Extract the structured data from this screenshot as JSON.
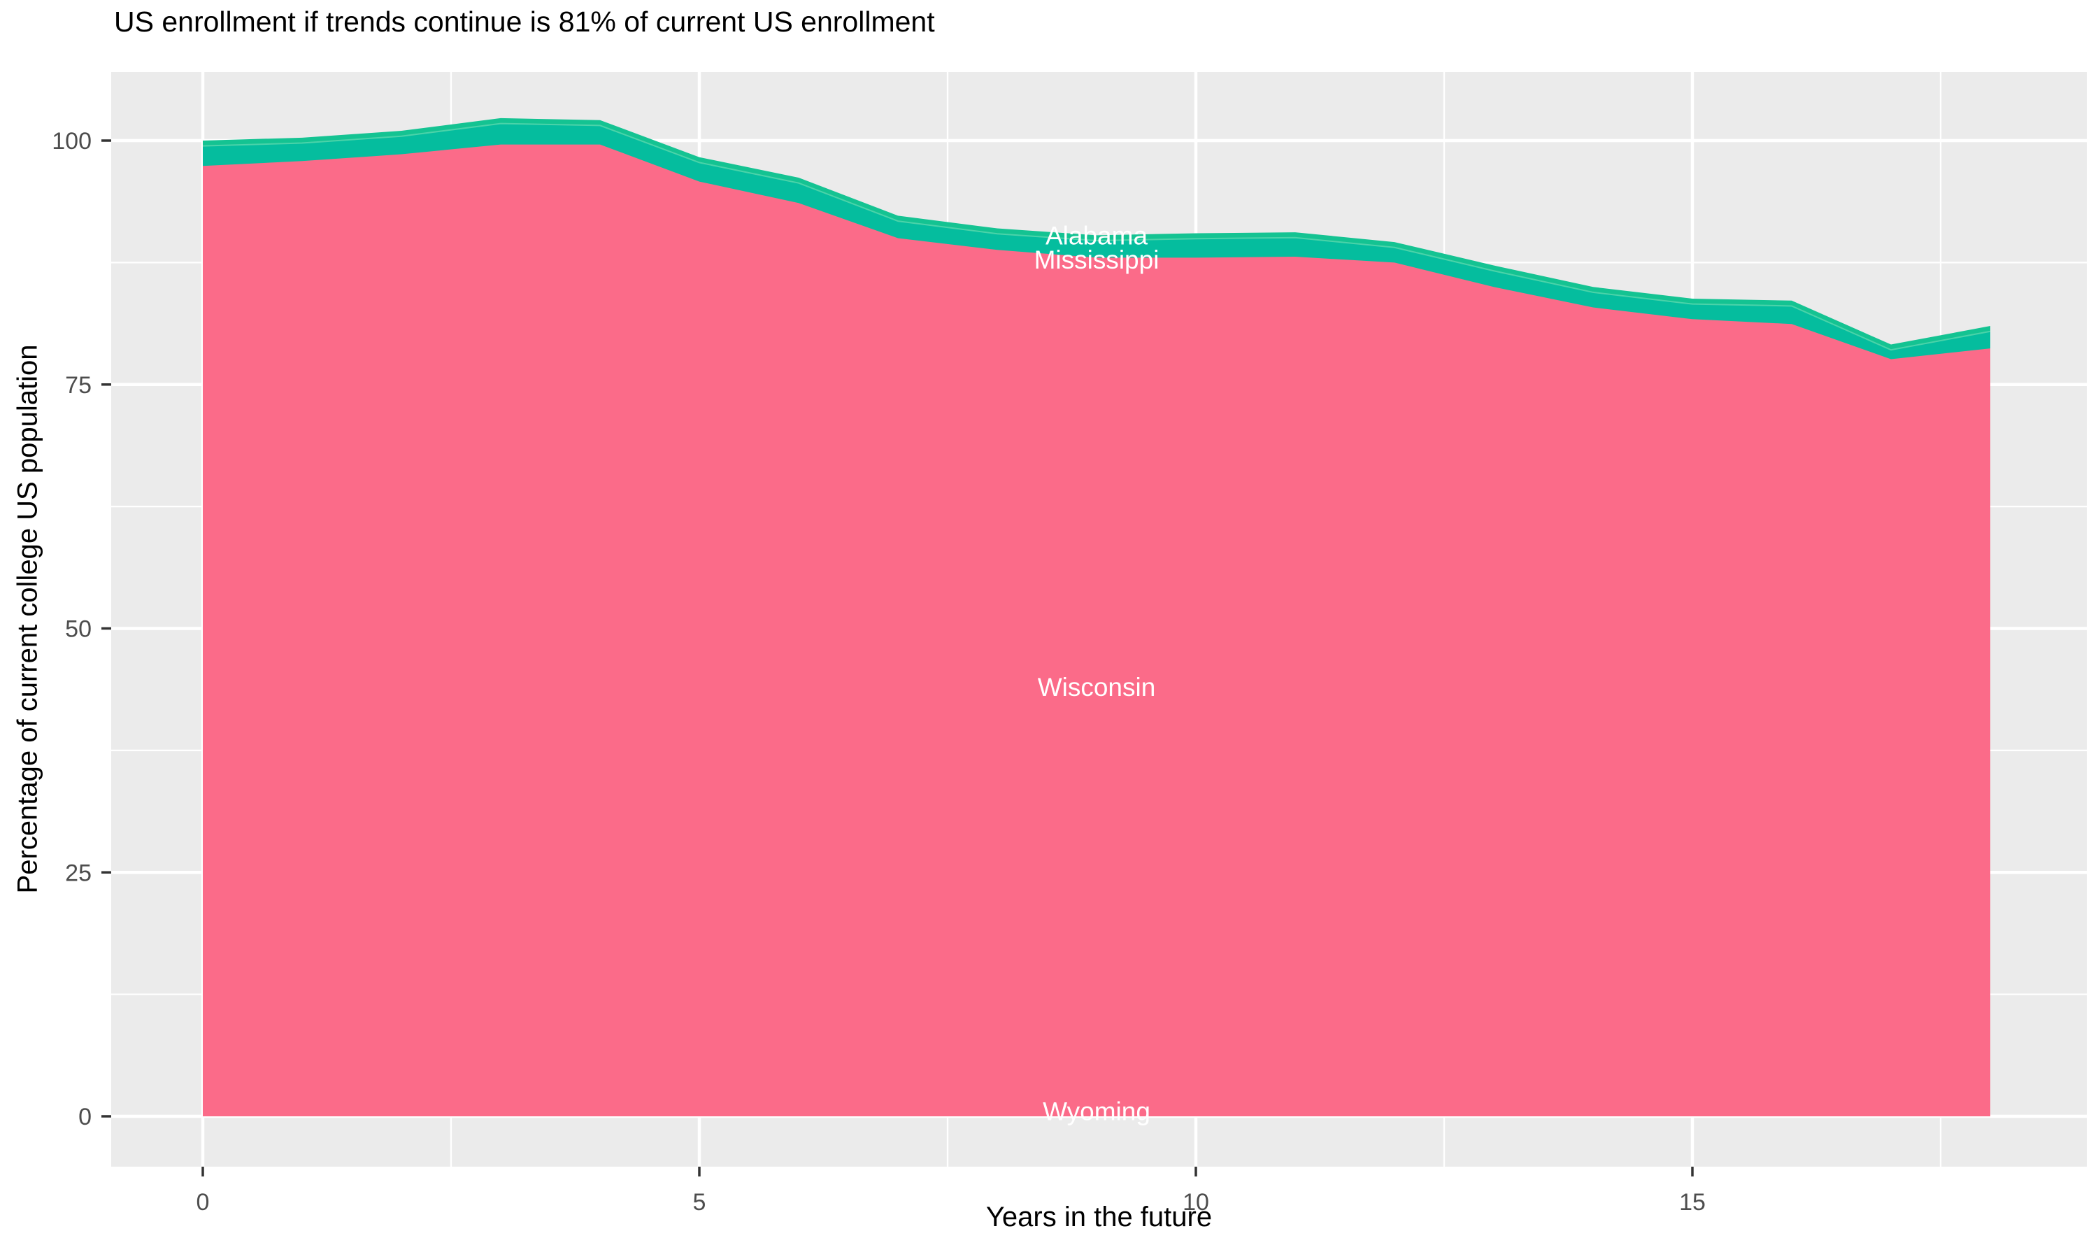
{
  "title": "US enrollment if trends continue is 81% of current US enrollment",
  "chart_data": {
    "type": "area",
    "stacked": true,
    "title": "US enrollment if trends continue is 81% of current US enrollment",
    "xlabel": "Years in the future",
    "ylabel": "Percentage of current college US population",
    "x": [
      0,
      1,
      2,
      3,
      4,
      5,
      6,
      7,
      8,
      9,
      10,
      11,
      12,
      13,
      14,
      15,
      16,
      17,
      18
    ],
    "series": [
      {
        "name": "Wyoming",
        "color": "#FB6B89",
        "values": [
          0.1,
          0.1,
          0.1,
          0.1,
          0.1,
          0.1,
          0.1,
          0.1,
          0.1,
          0.1,
          0.1,
          0.1,
          0.1,
          0.1,
          0.1,
          0.1,
          0.1,
          0.1,
          0.1
        ]
      },
      {
        "name": "Wisconsin",
        "color": "#FB6B89",
        "values": [
          97.3,
          97.8,
          98.5,
          99.5,
          99.5,
          95.7,
          93.5,
          89.9,
          88.7,
          87.9,
          87.9,
          88.0,
          87.4,
          84.9,
          82.8,
          81.6,
          81.1,
          77.5,
          78.6
        ]
      },
      {
        "name": "Mississippi",
        "color": "#05BD9E",
        "values": [
          2.05,
          1.85,
          1.85,
          2.15,
          1.95,
          1.95,
          2.05,
          1.75,
          1.65,
          1.75,
          1.95,
          1.95,
          1.55,
          1.65,
          1.55,
          1.55,
          1.85,
          0.95,
          1.75
        ]
      },
      {
        "name": "Alabama",
        "color": "#14C392",
        "values": [
          0.55,
          0.55,
          0.55,
          0.55,
          0.55,
          0.55,
          0.55,
          0.55,
          0.55,
          0.55,
          0.55,
          0.55,
          0.55,
          0.55,
          0.55,
          0.55,
          0.55,
          0.55,
          0.55
        ]
      }
    ],
    "totals_note": "stacked totals: 100.0,100.3,101.0,102.3,102.1,98.3,96.2,92.3,91.0,90.3,90.5,90.6,89.6,87.2,85.0,83.8,83.6,79.1,81.0",
    "xlim": [
      0,
      18
    ],
    "ylim": [
      0,
      100
    ],
    "x_ticks": [
      0,
      5,
      10,
      15
    ],
    "y_ticks": [
      0,
      25,
      50,
      75,
      100
    ],
    "x_minor_gridlines": [
      2.5,
      7.5,
      12.5,
      17.5
    ],
    "y_minor_gridlines": [
      12.5,
      37.5,
      62.5,
      87.5
    ],
    "grid": true,
    "legend_position": "none",
    "area_labels": [
      {
        "text": "Alabama",
        "x": 9,
        "y": 90.3
      },
      {
        "text": "Mississippi",
        "x": 9,
        "y": 87.8
      },
      {
        "text": "Wisconsin",
        "x": 9,
        "y": 44.0
      },
      {
        "text": "Wyoming",
        "x": 9,
        "y": 0.55
      }
    ],
    "colors": {
      "panel_bg": "#EBEBEB",
      "gridline": "#FFFFFF",
      "tick_mark": "#333333",
      "tick_label": "#4D4D4D",
      "axis_title": "#000000",
      "plot_title": "#000000",
      "area_label_text": "#FFFFFF",
      "series_divider_line": "#4BD3A9"
    }
  }
}
